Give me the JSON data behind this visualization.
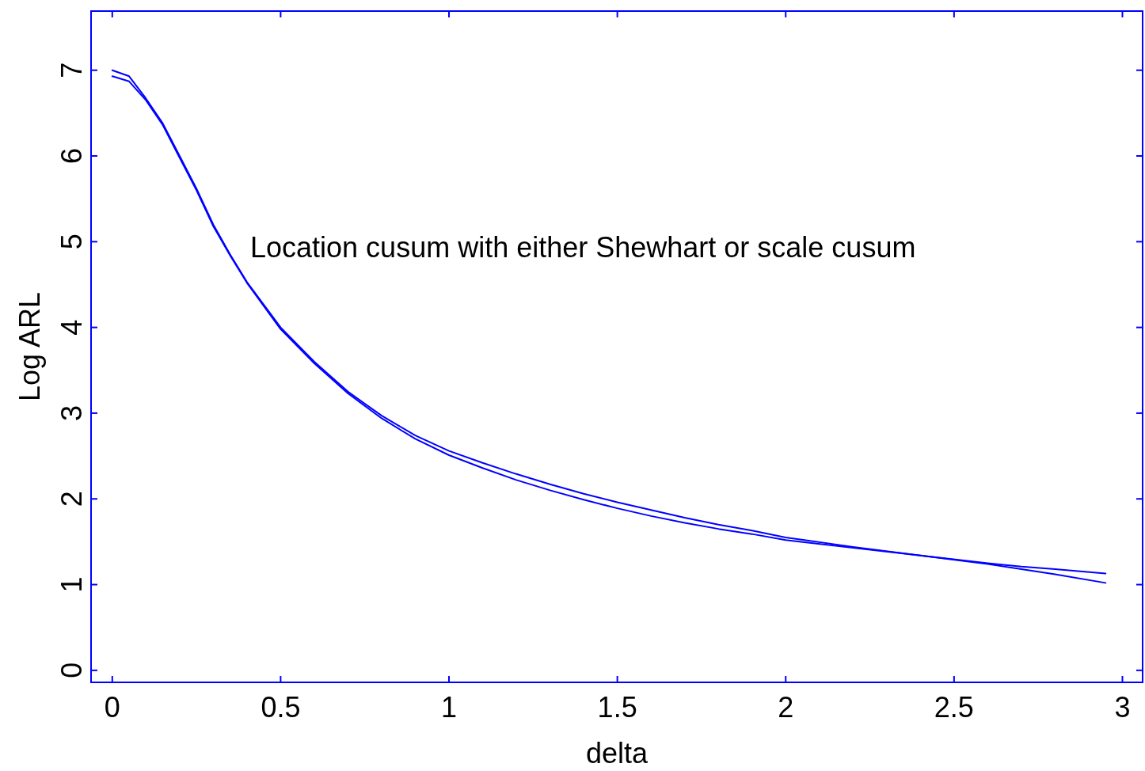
{
  "chart_data": {
    "type": "line",
    "xlabel": "delta",
    "ylabel": "Log ARL",
    "annotations": [
      "Location cusum with either Shewhart or scale cusum"
    ],
    "x": [
      0,
      0.05,
      0.1,
      0.15,
      0.2,
      0.25,
      0.3,
      0.35,
      0.4,
      0.5,
      0.6,
      0.7,
      0.8,
      0.9,
      1.0,
      1.1,
      1.2,
      1.3,
      1.4,
      1.5,
      1.6,
      1.7,
      1.8,
      1.9,
      2.0,
      2.2,
      2.4,
      2.6,
      2.7,
      2.8,
      2.95
    ],
    "series": [
      {
        "color": "#0000ff",
        "values": [
          7.0,
          6.93,
          6.67,
          6.38,
          6.0,
          5.62,
          5.2,
          4.85,
          4.53,
          4.0,
          3.6,
          3.25,
          2.97,
          2.74,
          2.56,
          2.42,
          2.29,
          2.17,
          2.06,
          1.96,
          1.87,
          1.78,
          1.7,
          1.63,
          1.55,
          1.44,
          1.34,
          1.25,
          1.21,
          1.18,
          1.13
        ]
      },
      {
        "color": "#0000ff",
        "values": [
          6.93,
          6.87,
          6.65,
          6.36,
          5.98,
          5.6,
          5.18,
          4.84,
          4.52,
          3.98,
          3.58,
          3.23,
          2.94,
          2.7,
          2.51,
          2.36,
          2.22,
          2.1,
          1.99,
          1.89,
          1.8,
          1.72,
          1.65,
          1.59,
          1.52,
          1.43,
          1.34,
          1.24,
          1.18,
          1.12,
          1.02
        ]
      }
    ],
    "xlim": [
      -0.063,
      3.06
    ],
    "ylim": [
      -0.14,
      7.69
    ],
    "xticks": [
      0,
      0.5,
      1,
      1.5,
      2,
      2.5,
      3
    ],
    "yticks": [
      0,
      1,
      2,
      3,
      4,
      5,
      6,
      7
    ],
    "grid": false,
    "marker": "none",
    "line_style": "solid"
  }
}
